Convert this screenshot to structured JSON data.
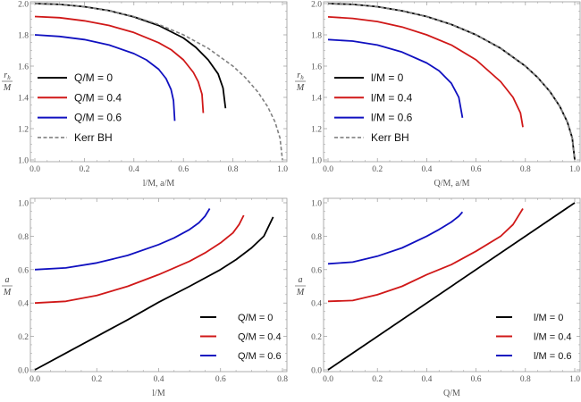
{
  "colors": {
    "black": "#000000",
    "red": "#d01818",
    "blue": "#1010c0",
    "kerr": "#808080",
    "frame": "#999999"
  },
  "chart_data": [
    {
      "type": "line",
      "panel": "top-left",
      "xlabel": "l/M, a/M",
      "ylabel_num": "r",
      "ylabel_sub": "h",
      "ylabel_den": "M",
      "xlim": [
        0,
        1.0
      ],
      "ylim": [
        1.0,
        2.0
      ],
      "xticks": [
        "0.0",
        "0.2",
        "0.4",
        "0.6",
        "0.8",
        "1.0"
      ],
      "yticks": [
        "1.0",
        "1.2",
        "1.4",
        "1.6",
        "1.8",
        "2.0"
      ],
      "legend_position": "left",
      "series": [
        {
          "name": "Q/M = 0",
          "color": "black",
          "x": [
            0,
            0.1,
            0.2,
            0.3,
            0.4,
            0.5,
            0.6,
            0.65,
            0.7,
            0.74,
            0.76,
            0.77
          ],
          "y": [
            2.0,
            1.995,
            1.98,
            1.955,
            1.915,
            1.86,
            1.78,
            1.72,
            1.64,
            1.55,
            1.46,
            1.33
          ]
        },
        {
          "name": "Q/M = 0.4",
          "color": "red",
          "x": [
            0,
            0.1,
            0.2,
            0.3,
            0.4,
            0.5,
            0.55,
            0.6,
            0.64,
            0.66,
            0.675,
            0.68
          ],
          "y": [
            1.917,
            1.91,
            1.89,
            1.86,
            1.815,
            1.75,
            1.705,
            1.64,
            1.56,
            1.5,
            1.42,
            1.3
          ]
        },
        {
          "name": "Q/M = 0.6",
          "color": "blue",
          "x": [
            0,
            0.1,
            0.2,
            0.3,
            0.4,
            0.45,
            0.5,
            0.53,
            0.55,
            0.56,
            0.565
          ],
          "y": [
            1.8,
            1.79,
            1.77,
            1.735,
            1.68,
            1.64,
            1.58,
            1.52,
            1.45,
            1.38,
            1.25
          ]
        },
        {
          "name": "Kerr BH",
          "color": "kerr",
          "dashed": true,
          "x": [
            0,
            0.1,
            0.2,
            0.3,
            0.4,
            0.5,
            0.6,
            0.7,
            0.8,
            0.85,
            0.9,
            0.94,
            0.97,
            0.99,
            1.0
          ],
          "y": [
            2.0,
            1.995,
            1.98,
            1.954,
            1.917,
            1.866,
            1.8,
            1.714,
            1.6,
            1.527,
            1.436,
            1.341,
            1.243,
            1.141,
            1.0
          ]
        }
      ]
    },
    {
      "type": "line",
      "panel": "top-right",
      "xlabel": "Q/M, a/M",
      "ylabel_num": "r",
      "ylabel_sub": "h",
      "ylabel_den": "M",
      "xlim": [
        0,
        1.0
      ],
      "ylim": [
        1.0,
        2.0
      ],
      "xticks": [
        "0.0",
        "0.2",
        "0.4",
        "0.6",
        "0.8",
        "1.0"
      ],
      "yticks": [
        "1.0",
        "1.2",
        "1.4",
        "1.6",
        "1.8",
        "2.0"
      ],
      "legend_position": "left",
      "series": [
        {
          "name": "l/M = 0",
          "color": "black",
          "x": [
            0,
            0.1,
            0.2,
            0.3,
            0.4,
            0.5,
            0.6,
            0.7,
            0.8,
            0.85,
            0.9,
            0.94,
            0.97,
            0.99,
            1.0
          ],
          "y": [
            2.0,
            1.995,
            1.98,
            1.954,
            1.917,
            1.866,
            1.8,
            1.714,
            1.6,
            1.527,
            1.436,
            1.341,
            1.243,
            1.141,
            1.0
          ]
        },
        {
          "name": "l/M = 0.4",
          "color": "red",
          "x": [
            0,
            0.1,
            0.2,
            0.3,
            0.4,
            0.5,
            0.6,
            0.7,
            0.75,
            0.78,
            0.79
          ],
          "y": [
            1.915,
            1.905,
            1.885,
            1.85,
            1.8,
            1.735,
            1.64,
            1.5,
            1.4,
            1.3,
            1.21
          ]
        },
        {
          "name": "l/M = 0.6",
          "color": "blue",
          "x": [
            0,
            0.1,
            0.2,
            0.3,
            0.4,
            0.45,
            0.5,
            0.53,
            0.545
          ],
          "y": [
            1.77,
            1.76,
            1.735,
            1.69,
            1.62,
            1.57,
            1.49,
            1.4,
            1.27
          ]
        },
        {
          "name": "Kerr BH",
          "color": "kerr",
          "dashed": true,
          "x": [
            0,
            0.1,
            0.2,
            0.3,
            0.4,
            0.5,
            0.6,
            0.7,
            0.8,
            0.85,
            0.9,
            0.94,
            0.97,
            0.99,
            1.0
          ],
          "y": [
            2.0,
            1.995,
            1.98,
            1.954,
            1.917,
            1.866,
            1.8,
            1.714,
            1.6,
            1.527,
            1.436,
            1.341,
            1.243,
            1.141,
            1.0
          ]
        }
      ]
    },
    {
      "type": "line",
      "panel": "bottom-left",
      "xlabel": "l/M",
      "ylabel_num": "a",
      "ylabel_sub": "",
      "ylabel_den": "M",
      "xlim": [
        0,
        0.8
      ],
      "ylim": [
        0,
        1.0
      ],
      "xticks": [
        "0.0",
        "0.2",
        "0.4",
        "0.6",
        "0.8"
      ],
      "yticks": [
        "0.0",
        "0.2",
        "0.4",
        "0.6",
        "0.8",
        "1.0"
      ],
      "legend_position": "bottom-right",
      "series": [
        {
          "name": "Q/M = 0",
          "color": "black",
          "x": [
            0,
            0.1,
            0.2,
            0.3,
            0.4,
            0.5,
            0.6,
            0.65,
            0.7,
            0.74,
            0.77
          ],
          "y": [
            0,
            0.1,
            0.2,
            0.3,
            0.405,
            0.5,
            0.6,
            0.66,
            0.73,
            0.8,
            0.915
          ]
        },
        {
          "name": "Q/M = 0.4",
          "color": "red",
          "x": [
            0,
            0.1,
            0.2,
            0.3,
            0.4,
            0.5,
            0.55,
            0.6,
            0.64,
            0.66,
            0.675
          ],
          "y": [
            0.4,
            0.41,
            0.445,
            0.5,
            0.57,
            0.65,
            0.7,
            0.76,
            0.82,
            0.87,
            0.925
          ]
        },
        {
          "name": "Q/M = 0.6",
          "color": "blue",
          "x": [
            0,
            0.1,
            0.2,
            0.3,
            0.4,
            0.45,
            0.5,
            0.53,
            0.55,
            0.565
          ],
          "y": [
            0.6,
            0.61,
            0.64,
            0.685,
            0.75,
            0.79,
            0.84,
            0.88,
            0.92,
            0.965
          ]
        }
      ]
    },
    {
      "type": "line",
      "panel": "bottom-right",
      "xlabel": "Q/M",
      "ylabel_num": "a",
      "ylabel_sub": "",
      "ylabel_den": "M",
      "xlim": [
        0,
        1.0
      ],
      "ylim": [
        0,
        1.0
      ],
      "xticks": [
        "0.0",
        "0.2",
        "0.4",
        "0.6",
        "0.8",
        "1.0"
      ],
      "yticks": [
        "0.0",
        "0.2",
        "0.4",
        "0.6",
        "0.8",
        "1.0"
      ],
      "legend_position": "bottom-right",
      "series": [
        {
          "name": "l/M = 0",
          "color": "black",
          "x": [
            0,
            1.0
          ],
          "y": [
            0,
            1.0
          ]
        },
        {
          "name": "l/M = 0.4",
          "color": "red",
          "x": [
            0,
            0.1,
            0.2,
            0.3,
            0.4,
            0.5,
            0.6,
            0.7,
            0.75,
            0.79
          ],
          "y": [
            0.41,
            0.415,
            0.45,
            0.5,
            0.57,
            0.63,
            0.71,
            0.8,
            0.87,
            0.965
          ]
        },
        {
          "name": "l/M = 0.6",
          "color": "blue",
          "x": [
            0,
            0.1,
            0.2,
            0.3,
            0.4,
            0.45,
            0.5,
            0.53,
            0.545
          ],
          "y": [
            0.635,
            0.645,
            0.68,
            0.73,
            0.8,
            0.84,
            0.885,
            0.92,
            0.945
          ]
        }
      ]
    }
  ]
}
